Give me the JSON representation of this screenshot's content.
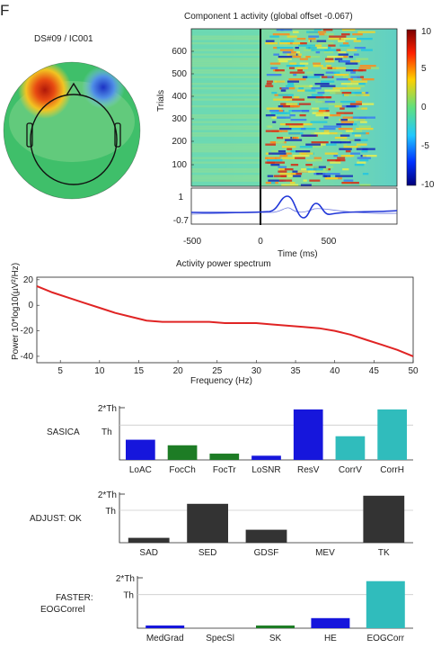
{
  "panel_letter": "F",
  "topo": {
    "label": "DS#09 / IC001",
    "colors": {
      "background": "#3fbf6a",
      "hot": "#d42a10",
      "warm": "#f0d21f",
      "cold": "#2a58d8",
      "cool": "#8ed0f2",
      "line": "#111111"
    }
  },
  "erp_image": {
    "title": "Component 1 activity (global offset -0.067)",
    "ylabel": "Trials",
    "xlabel": "Time (ms)",
    "ytick_labels": [
      "600",
      "500",
      "400",
      "300",
      "200",
      "100"
    ],
    "xtick_labels": [
      "-500",
      "0",
      "500"
    ],
    "colorbar_ticks": [
      "10",
      "5",
      "0",
      "-5",
      "-10"
    ],
    "erp_yticks": [
      "1",
      "-0.7"
    ],
    "colors": {
      "trace": "#1f35d8",
      "line": "#000000"
    }
  },
  "chart_data": [
    {
      "type": "line",
      "title": "Activity power spectrum",
      "xlabel": "Frequency (Hz)",
      "ylabel": "Power 10*log10(µV²/Hz)",
      "xlim": [
        2,
        50
      ],
      "ylim": [
        -45,
        22
      ],
      "x_ticks": [
        5,
        10,
        15,
        20,
        25,
        30,
        35,
        40,
        45,
        50
      ],
      "y_ticks": [
        20,
        0,
        -20,
        -40
      ],
      "x": [
        2,
        4,
        6,
        8,
        10,
        12,
        14,
        16,
        18,
        20,
        22,
        24,
        26,
        28,
        30,
        32,
        34,
        36,
        38,
        40,
        42,
        44,
        46,
        48,
        50
      ],
      "values": [
        15,
        10,
        6,
        2,
        -2,
        -6,
        -9,
        -12,
        -13,
        -13,
        -13,
        -13,
        -14,
        -14,
        -14,
        -15,
        -16,
        -17,
        -18,
        -20,
        -23,
        -27,
        -31,
        -35,
        -40
      ],
      "colors": {
        "line": "#e02424"
      }
    },
    {
      "type": "bar",
      "title": "SASICA",
      "y_tick_labels": [
        "2*Th",
        "Th"
      ],
      "threshold_label": "Th",
      "categories": [
        "LoAC",
        "FocCh",
        "FocTr",
        "LoSNR",
        "ResV",
        "CorrV",
        "CorrH"
      ],
      "values": [
        0.58,
        0.42,
        0.18,
        0.12,
        1.45,
        0.68,
        1.45
      ],
      "colors": [
        "#1616dc",
        "#1d7c25",
        "#1d7c25",
        "#1616dc",
        "#1616dc",
        "#30bcbc",
        "#30bcbc"
      ]
    },
    {
      "type": "bar",
      "title": "ADJUST: OK",
      "y_tick_labels": [
        "2*Th",
        "Th"
      ],
      "categories": [
        "SAD",
        "SED",
        "GDSF",
        "MEV",
        "TK"
      ],
      "values": [
        0.15,
        1.2,
        0.4,
        0,
        1.45
      ],
      "colors": [
        "#333333",
        "#333333",
        "#333333",
        "#333333",
        "#333333"
      ]
    },
    {
      "type": "bar",
      "title_lines": [
        "FASTER:",
        "EOGCorrel"
      ],
      "y_tick_labels": [
        "2*Th",
        "Th"
      ],
      "categories": [
        "MedGrad",
        "SpecSl",
        "SK",
        "HE",
        "EOGCorr"
      ],
      "values": [
        0.08,
        0,
        0.08,
        0.3,
        1.4
      ],
      "colors": [
        "#1616dc",
        "#1d7c25",
        "#1d7c25",
        "#1616dc",
        "#30bcbc"
      ]
    }
  ]
}
